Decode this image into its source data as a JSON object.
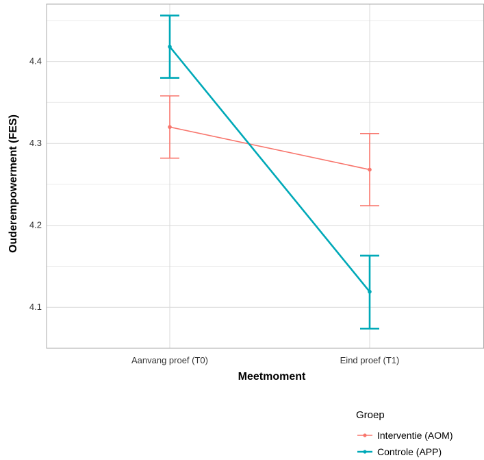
{
  "chart_data": {
    "type": "line",
    "xlabel": "Meetmoment",
    "ylabel": "Ouderempowerment (FES)",
    "categories": [
      "Aanvang proef (T0)",
      "Eind proef (T1)"
    ],
    "ylim": [
      4.05,
      4.47
    ],
    "yticks": [
      4.1,
      4.2,
      4.3,
      4.4
    ],
    "grid": true,
    "legend": {
      "title": "Groep",
      "placement": "bottom-right"
    },
    "series": [
      {
        "name": "Interventie (AOM)",
        "color": "#F8766D",
        "values": [
          4.32,
          4.268
        ],
        "error_lower": [
          4.282,
          4.224
        ],
        "error_upper": [
          4.358,
          4.312
        ]
      },
      {
        "name": "Controle (APP)",
        "color": "#00A9B8",
        "values": [
          4.418,
          4.119
        ],
        "error_lower": [
          4.38,
          4.074
        ],
        "error_upper": [
          4.456,
          4.163
        ]
      }
    ]
  }
}
